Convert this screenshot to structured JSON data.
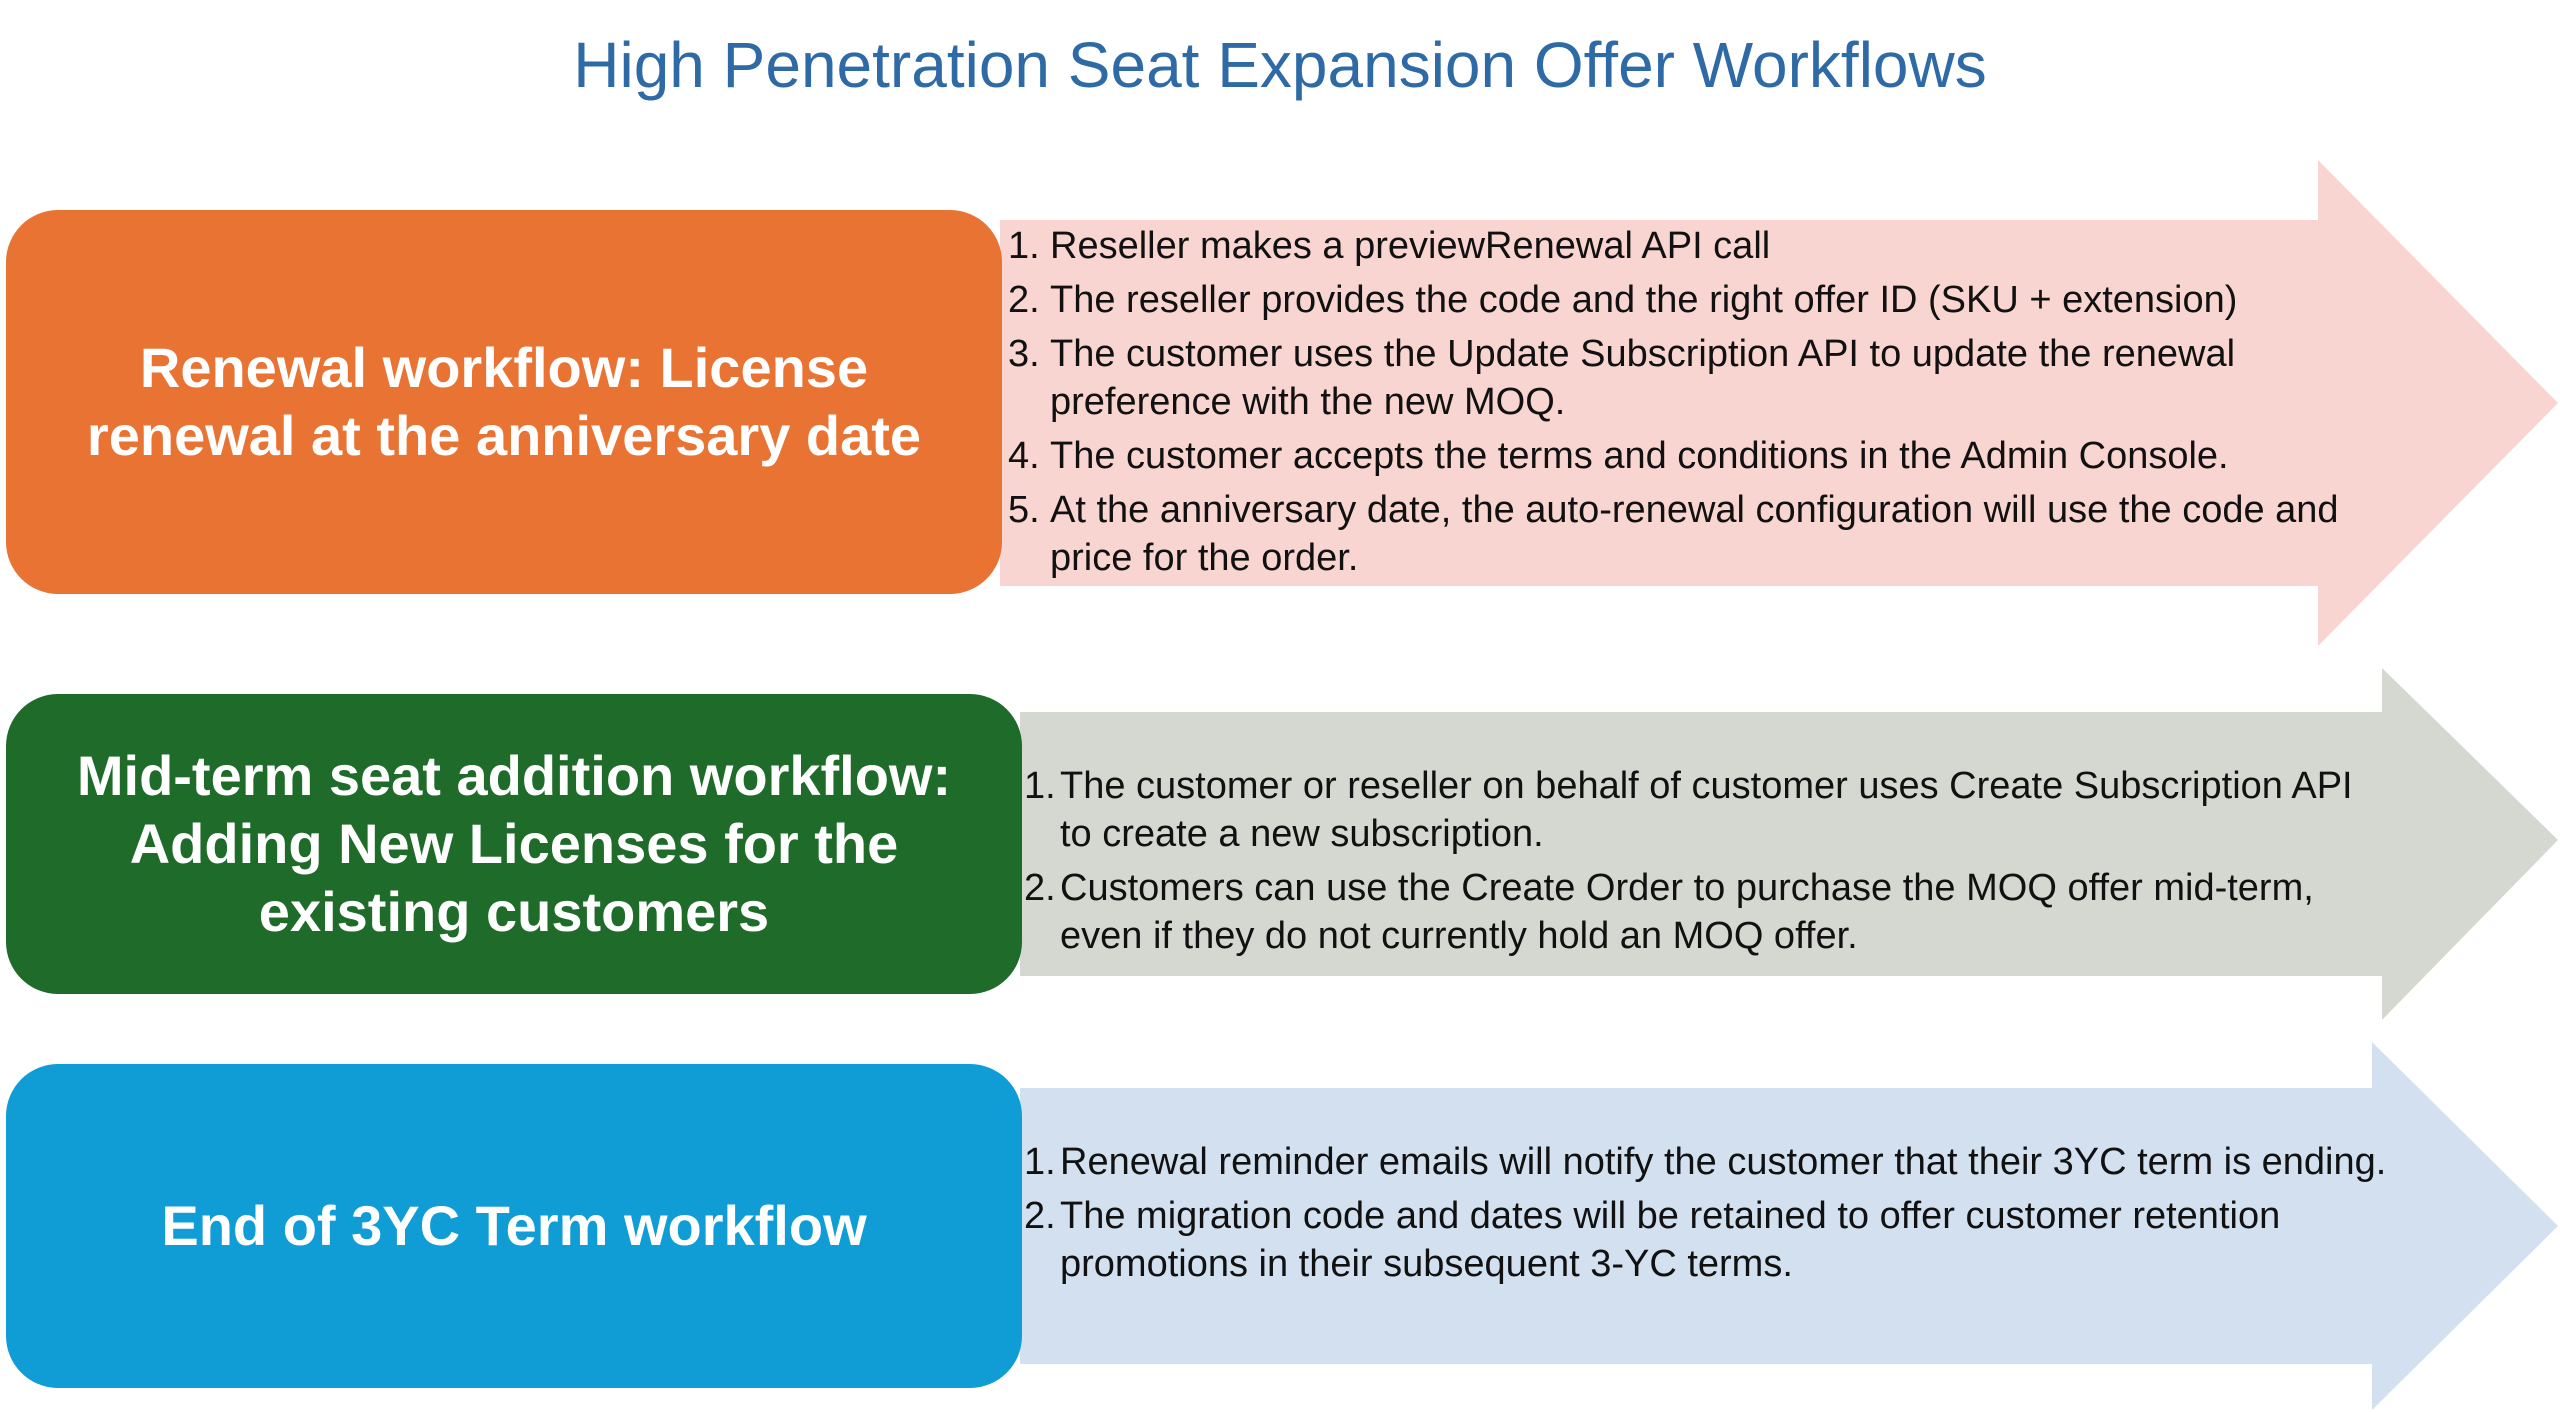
{
  "title": "High Penetration Seat Expansion Offer Workflows",
  "colors": {
    "title": "#2e6aa6",
    "renewal_box": "#e87333",
    "renewal_arrow": "#f8d5d0",
    "midterm_box": "#1e6b2a",
    "midterm_arrow": "#d4d8d0",
    "end_box": "#109dd6",
    "end_arrow": "#d2e0f0"
  },
  "workflows": [
    {
      "name": "Renewal workflow: License renewal at the anniversary date",
      "steps": [
        {
          "num": "1.",
          "text": "Reseller makes a previewRenewal API call"
        },
        {
          "num": "2.",
          "text": "The reseller provides the code and the right offer ID (SKU + extension)"
        },
        {
          "num": "3.",
          "text": "The customer uses the Update Subscription API to update the renewal preference with the new MOQ."
        },
        {
          "num": "4.",
          "text": "The customer accepts the terms and conditions in the Admin Console."
        },
        {
          "num": "5.",
          "text": "At the anniversary date, the auto-renewal configuration will use the code and price for the order."
        }
      ]
    },
    {
      "name": "Mid-term seat addition workflow: Adding New Licenses for the existing customers",
      "steps": [
        {
          "num": "1.",
          "text": "The customer or reseller on behalf of customer uses Create Subscription API to create a new subscription."
        },
        {
          "num": "2.",
          "text": "Customers can use the Create Order to purchase the MOQ offer mid-term, even if they do not currently hold an MOQ offer."
        }
      ]
    },
    {
      "name": "End of 3YC Term workflow",
      "steps": [
        {
          "num": "1.",
          "text": "Renewal reminder emails will notify the customer that their 3YC term is ending."
        },
        {
          "num": "2.",
          "text": "The migration code and dates will be retained to offer customer retention promotions in their subsequent 3-YC terms."
        }
      ]
    }
  ]
}
